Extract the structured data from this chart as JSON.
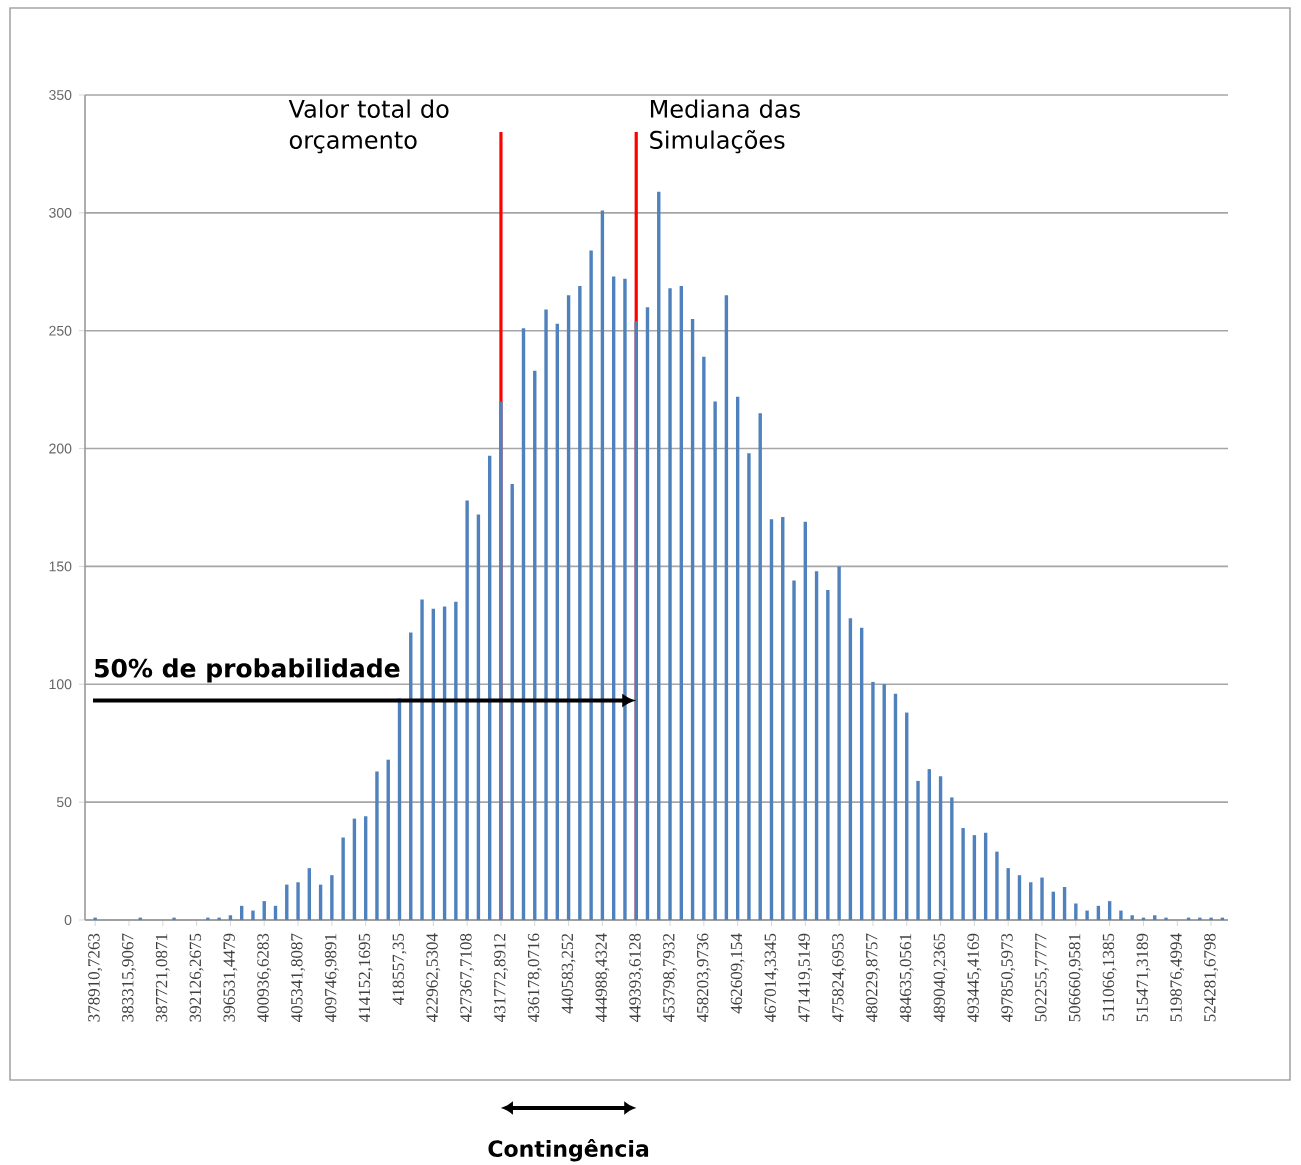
{
  "chart_data": {
    "type": "bar",
    "color": "#4f81bd",
    "categories": [
      "378910,7263",
      null,
      null,
      "383315,9067",
      null,
      null,
      "387721,0871",
      null,
      null,
      "392126,2675",
      null,
      null,
      "396531,4479",
      null,
      null,
      "400936,6283",
      null,
      null,
      "405341,8087",
      null,
      null,
      "409746,9891",
      null,
      null,
      "414152,1695",
      null,
      null,
      "418557,35",
      null,
      null,
      "422962,5304",
      null,
      null,
      "427367,7108",
      null,
      null,
      "431772,8912",
      null,
      null,
      "436178,0716",
      null,
      null,
      "440583,252",
      null,
      null,
      "444988,4324",
      null,
      null,
      "449393,6128",
      null,
      null,
      "453798,7932",
      null,
      null,
      "458203,9736",
      null,
      null,
      "462609,154",
      null,
      null,
      "467014,3345",
      null,
      null,
      "471419,5149",
      null,
      null,
      "475824,6953",
      null,
      null,
      "480229,8757",
      null,
      null,
      "484635,0561",
      null,
      null,
      "489040,2365",
      null,
      null,
      "493445,4169",
      null,
      null,
      "497850,5973",
      null,
      null,
      "502255,7777",
      null,
      null,
      "506660,9581",
      null,
      null,
      "511066,1385",
      null,
      null,
      "515471,3189",
      null,
      null,
      "519876,4994",
      null,
      null,
      "524281,6798",
      null
    ],
    "values": [
      1,
      0,
      0,
      0,
      1,
      0,
      0,
      1,
      0,
      0,
      1,
      1,
      2,
      6,
      4,
      8,
      6,
      15,
      16,
      22,
      15,
      19,
      35,
      43,
      44,
      63,
      68,
      94,
      122,
      136,
      132,
      133,
      135,
      178,
      172,
      197,
      220,
      185,
      251,
      233,
      259,
      253,
      265,
      269,
      284,
      301,
      273,
      272,
      254,
      260,
      309,
      268,
      269,
      255,
      239,
      220,
      265,
      222,
      198,
      215,
      170,
      171,
      144,
      169,
      148,
      140,
      150,
      128,
      124,
      101,
      100,
      96,
      88,
      59,
      64,
      61,
      52,
      39,
      36,
      37,
      29,
      22,
      19,
      16,
      18,
      12,
      14,
      7,
      4,
      6,
      8,
      4,
      2,
      1,
      2,
      1,
      0,
      1,
      1,
      1,
      1
    ],
    "ylim": [
      0,
      350
    ],
    "yticks": [
      0,
      50,
      100,
      150,
      200,
      250,
      300,
      350
    ],
    "grid": "y",
    "ref_lines": [
      {
        "axis": "x",
        "value": "431772,8912",
        "label": "Valor total do orçamento",
        "color": "#ff0000"
      },
      {
        "axis": "x",
        "value": "449393,6128",
        "label": "Mediana das Simulações",
        "color": "#ff0000"
      }
    ],
    "annotations": [
      "50% de probabilidade",
      "Contingência"
    ]
  }
}
